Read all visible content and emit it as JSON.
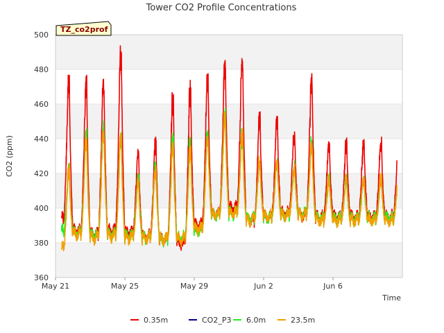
{
  "chart_data": {
    "type": "line",
    "title": "Tower CO2 Profile Concentrations",
    "xlabel": "Time",
    "ylabel": "CO2 (ppm)",
    "ylim": [
      360,
      500
    ],
    "yticks": [
      360,
      380,
      400,
      420,
      440,
      460,
      480,
      500
    ],
    "xlim": [
      0,
      20
    ],
    "xticks": [
      {
        "day": 0,
        "label": "May 21"
      },
      {
        "day": 4,
        "label": "May 25"
      },
      {
        "day": 8,
        "label": "May 29"
      },
      {
        "day": 12,
        "label": "Jun 2"
      },
      {
        "day": 16,
        "label": "Jun 6"
      }
    ],
    "site_label": "TZ_co2prof",
    "legend": [
      "0.35m",
      "CO2_P3",
      "6.0m",
      "23.5m"
    ],
    "series": [
      {
        "name": "0.35m",
        "color": "#ee0000",
        "peaks": [
          477,
          476,
          477,
          497,
          434,
          441,
          468,
          473,
          479,
          489,
          491,
          454,
          453,
          445,
          477,
          439
        ],
        "troughs": [
          392,
          385,
          383,
          385,
          384,
          382,
          380,
          378,
          388,
          395,
          398,
          391,
          393,
          395,
          394,
          393
        ]
      },
      {
        "name": "CO2_P3",
        "color": "#00008b",
        "peaks": [],
        "troughs": []
      },
      {
        "name": "6.0m",
        "color": "#22ee22",
        "peaks": [
          424,
          446,
          451,
          445,
          420,
          428,
          443,
          440,
          447,
          458,
          444,
          429,
          428,
          425,
          440,
          418
        ],
        "troughs": [
          385,
          384,
          382,
          383,
          382,
          381,
          380,
          381,
          385,
          394,
          395,
          392,
          393,
          394,
          395,
          392
        ]
      },
      {
        "name": "23.5m",
        "color": "#f0a000",
        "peaks": [
          424,
          442,
          448,
          446,
          417,
          424,
          438,
          436,
          443,
          455,
          445,
          428,
          428,
          424,
          438,
          418
        ],
        "troughs": [
          375,
          383,
          381,
          382,
          381,
          381,
          380,
          380,
          386,
          394,
          395,
          391,
          393,
          394,
          394,
          391
        ]
      }
    ],
    "background_bands": "alternating light-gray horizontal bands",
    "grid": true
  }
}
